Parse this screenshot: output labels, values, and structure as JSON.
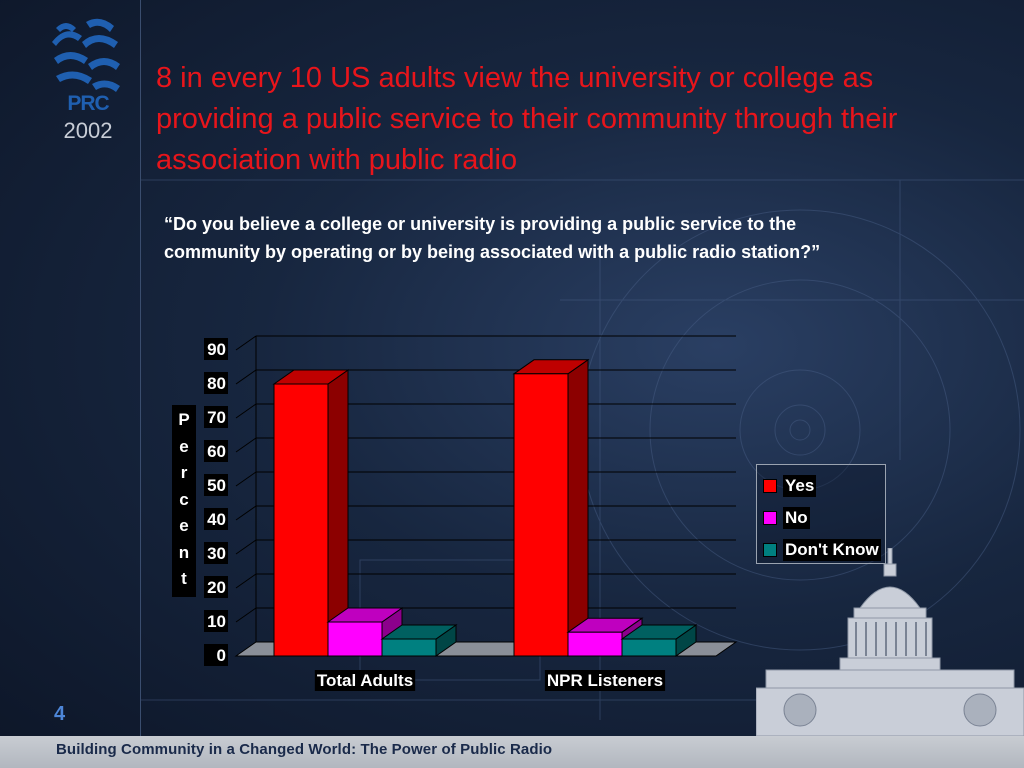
{
  "logo": {
    "brand": "PRC",
    "year": "2002"
  },
  "title": "8 in every 10 US adults view the university or college as providing a public service to their community through their association with public radio",
  "question": "“Do you believe a college or university is providing a public service to the community by operating or by being associated with a public radio station?”",
  "colors": {
    "yes": "#ff0000",
    "no": "#ff00ff",
    "dont_know": "#008080",
    "title": "#e8151b",
    "page_number": "#4d86d8"
  },
  "chart_data": {
    "type": "bar",
    "categories": [
      "Total Adults",
      "NPR Listeners"
    ],
    "series": [
      {
        "name": "Yes",
        "values": [
          80,
          83
        ]
      },
      {
        "name": "No",
        "values": [
          10,
          7
        ]
      },
      {
        "name": "Don't Know",
        "values": [
          5,
          5
        ]
      }
    ],
    "ylabel": "Percent",
    "yticks": [
      "0",
      "10",
      "20",
      "30",
      "40",
      "50",
      "60",
      "70",
      "80",
      "90"
    ],
    "ylim": [
      0,
      90
    ],
    "grid": true,
    "legend_position": "right"
  },
  "page_number": "4",
  "footer": "Building Community in a Changed World: The Power of Public Radio"
}
